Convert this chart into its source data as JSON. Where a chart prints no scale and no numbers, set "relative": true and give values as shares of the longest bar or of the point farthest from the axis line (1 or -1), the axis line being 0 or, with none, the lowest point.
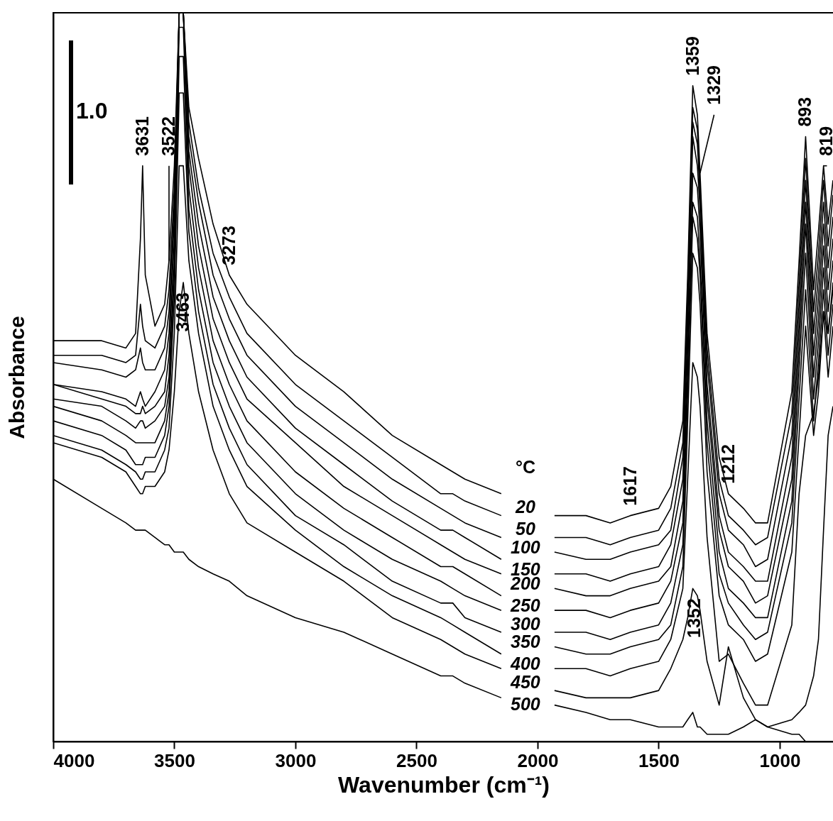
{
  "chart_data": {
    "type": "line",
    "relative": true,
    "xlabel": "Wavenumber (cm⁻¹)",
    "ylabel": "Absorbance",
    "legend_title": "°C",
    "legend": false,
    "grid": false,
    "xlim": [
      4000,
      777
    ],
    "xticks": [
      4000,
      3500,
      3000,
      2500,
      2000,
      1500,
      1000
    ],
    "x": [
      4000,
      3800,
      3700,
      3660,
      3640,
      3631,
      3620,
      3580,
      3540,
      3522,
      3500,
      3480,
      3463,
      3440,
      3400,
      3340,
      3273,
      3200,
      3000,
      2800,
      2600,
      2400,
      2350,
      2300,
      2150,
      2050,
      1930,
      1800,
      1700,
      1617,
      1500,
      1450,
      1400,
      1380,
      1359,
      1340,
      1329,
      1300,
      1250,
      1212,
      1150,
      1100,
      1050,
      950,
      920,
      893,
      860,
      840,
      819,
      800,
      780
    ],
    "series": [
      {
        "name": "20",
        "color": "#000000",
        "values": [
          0.55,
          0.55,
          0.54,
          0.56,
          0.69,
          0.79,
          0.64,
          0.57,
          0.6,
          0.66,
          0.79,
          1,
          1,
          0.87,
          0.8,
          0.71,
          0.64,
          0.6,
          0.53,
          0.48,
          0.42,
          0.38,
          0.37,
          0.36,
          0.34,
          null,
          0.31,
          0.31,
          0.3,
          0.31,
          0.32,
          0.35,
          0.44,
          0.64,
          0.9,
          0.86,
          0.78,
          0.56,
          0.39,
          0.34,
          0.32,
          0.3,
          0.3,
          0.48,
          0.66,
          0.83,
          0.62,
          0.7,
          0.79,
          0.71,
          0.77
        ]
      },
      {
        "name": "50",
        "color": "#000000",
        "values": [
          0.53,
          0.53,
          0.52,
          0.53,
          0.6,
          0.57,
          0.55,
          0.54,
          0.57,
          0.62,
          0.76,
          1,
          1,
          0.85,
          0.76,
          0.67,
          0.61,
          0.56,
          0.49,
          0.44,
          0.39,
          0.34,
          0.34,
          0.33,
          0.31,
          null,
          0.28,
          0.28,
          0.27,
          0.28,
          0.29,
          0.32,
          0.41,
          0.62,
          0.87,
          0.84,
          0.76,
          0.54,
          0.36,
          0.31,
          0.29,
          0.27,
          0.28,
          0.45,
          0.63,
          0.8,
          0.59,
          0.67,
          0.77,
          0.68,
          0.75
        ]
      },
      {
        "name": "100",
        "color": "#000000",
        "values": [
          0.52,
          0.51,
          0.5,
          0.51,
          0.54,
          0.52,
          0.51,
          0.51,
          0.54,
          0.59,
          0.74,
          1,
          1,
          0.83,
          0.74,
          0.64,
          0.58,
          0.53,
          0.46,
          0.41,
          0.36,
          0.32,
          0.31,
          0.3,
          0.28,
          null,
          0.26,
          0.25,
          0.25,
          0.26,
          0.27,
          0.29,
          0.39,
          0.6,
          0.85,
          0.82,
          0.75,
          0.52,
          0.34,
          0.29,
          0.27,
          0.24,
          0.25,
          0.42,
          0.6,
          0.77,
          0.56,
          0.64,
          0.74,
          0.65,
          0.72
        ]
      },
      {
        "name": "150",
        "color": "#000000",
        "values": [
          0.49,
          0.48,
          0.47,
          0.46,
          0.48,
          0.47,
          0.46,
          0.48,
          0.51,
          0.56,
          0.72,
          1,
          1,
          0.81,
          0.71,
          0.61,
          0.55,
          0.5,
          0.43,
          0.38,
          0.33,
          0.29,
          0.29,
          0.28,
          0.25,
          null,
          0.23,
          0.23,
          0.22,
          0.23,
          0.24,
          0.27,
          0.36,
          0.57,
          0.83,
          0.79,
          0.73,
          0.49,
          0.31,
          0.26,
          0.24,
          0.22,
          0.22,
          0.39,
          0.57,
          0.74,
          0.53,
          0.61,
          0.71,
          0.62,
          0.69
        ]
      },
      {
        "name": "200",
        "color": "#000000",
        "values": [
          0.49,
          0.47,
          0.46,
          0.45,
          0.45,
          0.46,
          0.45,
          0.46,
          0.48,
          0.53,
          0.69,
          1,
          1,
          0.79,
          0.68,
          0.58,
          0.52,
          0.47,
          0.41,
          0.35,
          0.31,
          0.27,
          0.26,
          0.25,
          0.23,
          null,
          0.21,
          0.2,
          0.2,
          0.21,
          0.22,
          0.24,
          0.33,
          0.54,
          0.78,
          0.76,
          0.7,
          0.47,
          0.29,
          0.24,
          0.22,
          0.19,
          0.2,
          0.36,
          0.54,
          0.71,
          0.5,
          0.58,
          0.68,
          0.59,
          0.66
        ]
      },
      {
        "name": "250",
        "color": "#000000",
        "values": [
          0.47,
          0.46,
          0.44,
          0.43,
          0.44,
          0.44,
          0.43,
          0.44,
          0.46,
          0.5,
          0.66,
          0.98,
          0.98,
          0.76,
          0.65,
          0.55,
          0.49,
          0.44,
          0.37,
          0.32,
          0.28,
          0.24,
          0.24,
          0.23,
          0.2,
          null,
          0.18,
          0.18,
          0.17,
          0.18,
          0.19,
          0.22,
          0.3,
          0.51,
          0.74,
          0.72,
          0.66,
          0.44,
          0.26,
          0.21,
          0.19,
          0.17,
          0.17,
          0.33,
          0.51,
          0.67,
          0.47,
          0.55,
          0.65,
          0.56,
          0.63
        ]
      },
      {
        "name": "300",
        "color": "#000000",
        "values": [
          0.46,
          0.44,
          0.42,
          0.41,
          0.41,
          0.41,
          0.41,
          0.41,
          0.44,
          0.48,
          0.64,
          0.94,
          0.94,
          0.73,
          0.62,
          0.52,
          0.46,
          0.41,
          0.34,
          0.29,
          0.25,
          0.22,
          0.21,
          0.2,
          0.18,
          null,
          0.15,
          0.15,
          0.14,
          0.15,
          0.16,
          0.19,
          0.27,
          0.48,
          0.72,
          0.69,
          0.64,
          0.41,
          0.23,
          0.19,
          0.16,
          0.14,
          0.15,
          0.3,
          0.47,
          0.62,
          0.44,
          0.52,
          0.62,
          0.53,
          0.6
        ]
      },
      {
        "name": "350",
        "color": "#000000",
        "values": [
          0.44,
          0.42,
          0.4,
          0.38,
          0.38,
          0.38,
          0.39,
          0.39,
          0.42,
          0.46,
          0.61,
          0.89,
          0.89,
          0.7,
          0.59,
          0.49,
          0.43,
          0.38,
          0.31,
          0.27,
          0.22,
          0.19,
          0.19,
          0.17,
          0.15,
          null,
          0.13,
          0.12,
          0.12,
          0.13,
          0.14,
          0.16,
          0.24,
          0.44,
          0.67,
          0.65,
          0.6,
          0.37,
          0.2,
          0.16,
          0.14,
          0.11,
          0.12,
          0.26,
          0.42,
          0.57,
          0.42,
          0.48,
          0.59,
          0.5,
          0.57
        ]
      },
      {
        "name": "400",
        "color": "#000000",
        "values": [
          0.42,
          0.4,
          0.38,
          0.37,
          0.36,
          0.36,
          0.37,
          0.37,
          0.4,
          0.43,
          0.56,
          0.79,
          0.79,
          0.66,
          0.56,
          0.46,
          0.4,
          0.35,
          0.29,
          0.24,
          0.2,
          0.17,
          0.16,
          0.15,
          0.12,
          null,
          0.1,
          0.1,
          0.09,
          0.1,
          0.11,
          0.14,
          0.21,
          0.36,
          0.52,
          0.5,
          0.46,
          0.28,
          0.11,
          0.12,
          0.08,
          0.05,
          0.05,
          0.16,
          0.34,
          0.42,
          0.45,
          0.5,
          0.59,
          0.56,
          0.62
        ]
      },
      {
        "name": "450",
        "color": "#000000",
        "values": [
          0.41,
          0.39,
          0.37,
          0.35,
          0.34,
          0.34,
          0.35,
          0.35,
          0.37,
          0.4,
          0.48,
          0.59,
          0.63,
          0.56,
          0.48,
          0.4,
          0.34,
          0.3,
          0.26,
          0.22,
          0.17,
          0.14,
          0.13,
          0.12,
          0.1,
          null,
          0.07,
          0.06,
          0.06,
          0.06,
          0.07,
          0.1,
          0.14,
          0.17,
          0.21,
          0.2,
          0.18,
          0.11,
          0.05,
          0.13,
          0.06,
          0.03,
          0.02,
          0.03,
          0.04,
          0.05,
          0.09,
          0.14,
          0.29,
          0.42,
          0.46
        ]
      },
      {
        "name": "500",
        "color": "#000000",
        "values": [
          0.36,
          0.32,
          0.3,
          0.29,
          0.29,
          0.29,
          0.29,
          0.28,
          0.27,
          0.27,
          0.26,
          0.26,
          0.26,
          0.25,
          0.24,
          0.23,
          0.22,
          0.2,
          0.17,
          0.15,
          0.12,
          0.09,
          0.09,
          0.08,
          0.06,
          null,
          0.05,
          0.04,
          0.03,
          0.03,
          0.02,
          0.02,
          0.02,
          0.03,
          0.04,
          0.02,
          0.02,
          0.01,
          0.01,
          0.01,
          0.02,
          0.03,
          0.02,
          0.01,
          0.01,
          0,
          0,
          0,
          0,
          0,
          0
        ]
      }
    ],
    "annotations": [
      "1.0",
      {
        "text": "3631",
        "x": 3631,
        "y": 0.79
      },
      {
        "text": "3522",
        "x": 3522,
        "y": 0.66
      },
      {
        "text": "3463",
        "x": 3463,
        "y": 0.63
      },
      {
        "text": "3273",
        "x": 3273,
        "y": 0.64
      },
      {
        "text": "1617",
        "x": 1617,
        "y": 0.31
      },
      {
        "text": "1359",
        "x": 1359,
        "y": 0.9
      },
      {
        "text": "1329",
        "x": 1329,
        "y": 0.78
      },
      {
        "text": "1212",
        "x": 1212,
        "y": 0.34
      },
      {
        "text": "1352",
        "x": 1352,
        "y": 0.21
      },
      {
        "text": "893",
        "x": 893,
        "y": 0.83
      },
      {
        "text": "819",
        "x": 819,
        "y": 0.79
      }
    ]
  }
}
